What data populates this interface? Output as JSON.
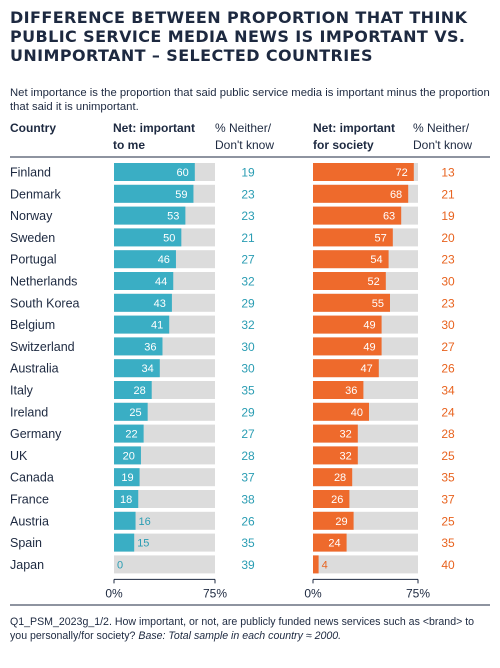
{
  "title": "DIFFERENCE BETWEEN PROPORTION THAT THINK PUBLIC SERVICE MEDIA NEWS IS IMPORTANT VS. UNIMPORTANT – SELECTED COUNTRIES",
  "subtitle": "Net importance is the proportion that said public service media is important minus the proportion that said it is unimportant.",
  "footnote": {
    "code": "Q1_PSM_2023g_1/2.",
    "question": "How important, or not, are publicly funded news services such as <brand> to you personally/for society?",
    "base": "Base: Total sample in each country ≈ 2000."
  },
  "colors": {
    "me_bar": "#3aaec4",
    "me_text": "#2a9db3",
    "society_bar": "#ee6a2c",
    "society_text": "#e8631f",
    "track": "#dcdcdc",
    "text": "#1d2940"
  },
  "chart_data": {
    "type": "bar",
    "orientation": "horizontal",
    "headers": {
      "country": "Country",
      "me": [
        "Net: important",
        "to me"
      ],
      "me_neither": [
        "% Neither/",
        "Don't know"
      ],
      "society": [
        "Net: important",
        "for society"
      ],
      "society_neither": [
        "% Neither/",
        "Don't know"
      ]
    },
    "xlim": [
      0,
      75
    ],
    "axis_ticks": [
      "0%",
      "75%"
    ],
    "categories": [
      "Finland",
      "Denmark",
      "Norway",
      "Sweden",
      "Portugal",
      "Netherlands",
      "South Korea",
      "Belgium",
      "Switzerland",
      "Australia",
      "Italy",
      "Ireland",
      "Germany",
      "UK",
      "Canada",
      "France",
      "Austria",
      "Spain",
      "Japan"
    ],
    "series": [
      {
        "key": "me",
        "values": [
          60,
          59,
          53,
          50,
          46,
          44,
          43,
          41,
          36,
          34,
          28,
          25,
          22,
          20,
          19,
          18,
          16,
          15,
          0
        ]
      },
      {
        "key": "me_neither",
        "values": [
          19,
          23,
          23,
          21,
          27,
          32,
          29,
          32,
          30,
          30,
          35,
          29,
          27,
          28,
          37,
          38,
          26,
          35,
          39
        ]
      },
      {
        "key": "society",
        "values": [
          72,
          68,
          63,
          57,
          54,
          52,
          55,
          49,
          49,
          47,
          36,
          40,
          32,
          32,
          28,
          26,
          29,
          24,
          4
        ]
      },
      {
        "key": "society_neither",
        "values": [
          13,
          21,
          19,
          20,
          23,
          30,
          23,
          30,
          27,
          26,
          34,
          24,
          28,
          25,
          35,
          37,
          25,
          35,
          40
        ]
      }
    ]
  }
}
